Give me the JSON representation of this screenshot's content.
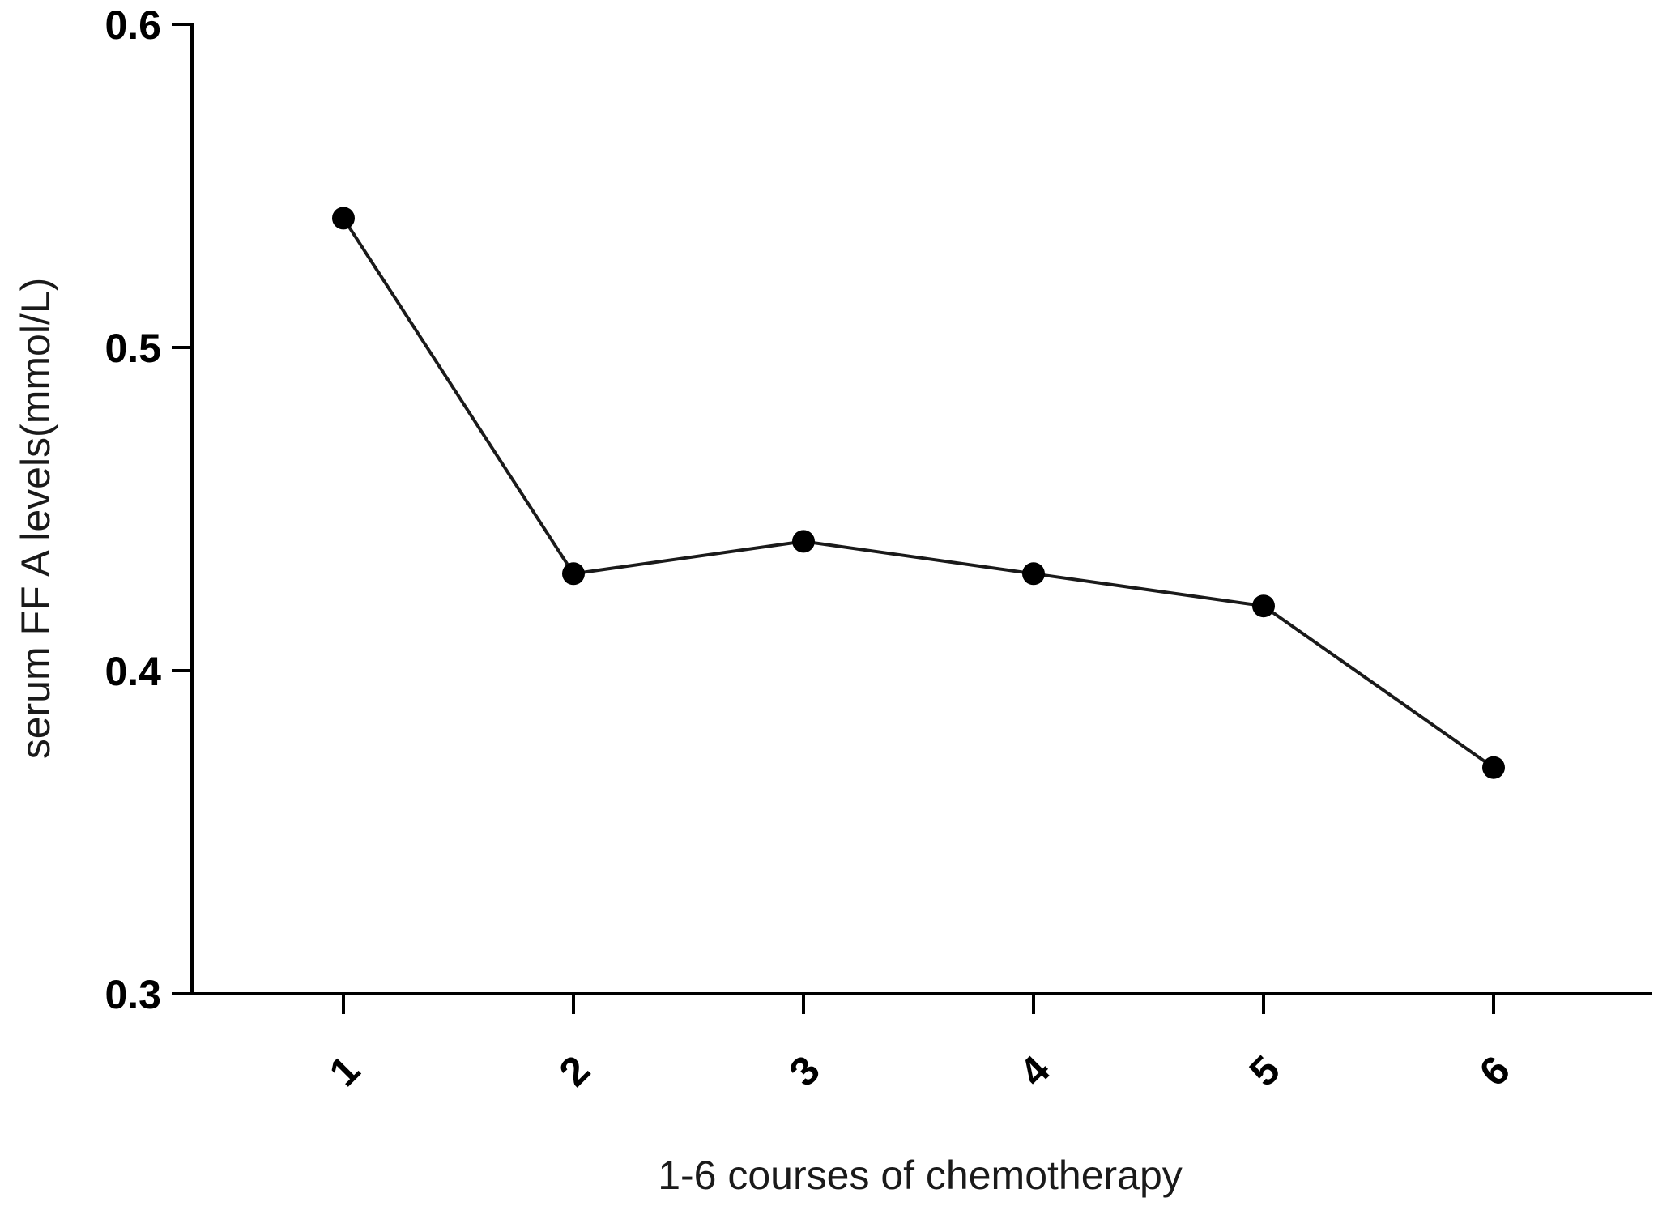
{
  "chart_data": {
    "type": "line",
    "title": "",
    "xlabel": "1-6 courses of chemotherapy",
    "ylabel": "serum FF A levels(mmol/L)",
    "x": [
      "1",
      "2",
      "3",
      "4",
      "5",
      "6"
    ],
    "series": [
      {
        "values": [
          0.54,
          0.43,
          0.44,
          0.43,
          0.42,
          0.37
        ]
      }
    ],
    "ylim": [
      0.3,
      0.6
    ],
    "yticks": [
      "0.3",
      "0.4",
      "0.5",
      "0.6"
    ],
    "grid": false,
    "legend": "none",
    "colors": {
      "line": "#1a1a1a",
      "marker": "#000000",
      "axis": "#000000"
    }
  }
}
